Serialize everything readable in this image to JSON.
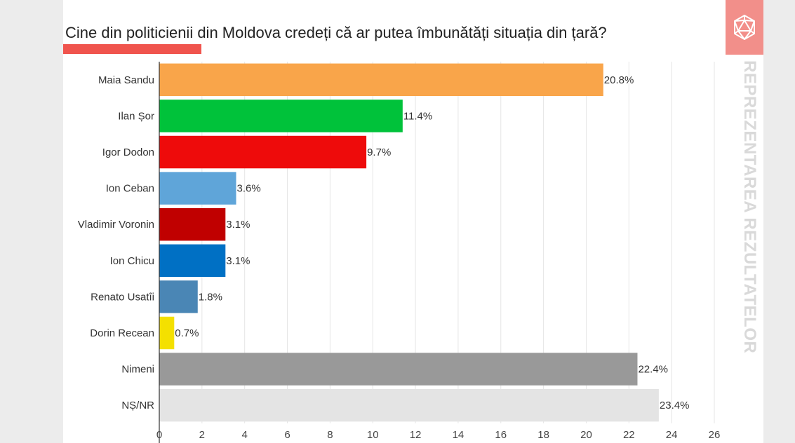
{
  "chart_data": {
    "type": "bar",
    "orientation": "horizontal",
    "title": "Cine din politicienii din Moldova credeți că ar putea îmbunătăți situația din țară?",
    "categories": [
      "Maia Sandu",
      "Ilan Șor",
      "Igor Dodon",
      "Ion Ceban",
      "Vladimir Voronin",
      "Ion Chicu",
      "Renato Usatîi",
      "Dorin Recean",
      "Nimeni",
      "NȘ/NR"
    ],
    "values": [
      20.8,
      11.4,
      9.7,
      3.6,
      3.1,
      3.1,
      1.8,
      0.7,
      22.4,
      23.4
    ],
    "value_labels": [
      "20.8%",
      "11.4%",
      "9.7%",
      "3.6%",
      "3.1%",
      "3.1%",
      "1.8%",
      "0.7%",
      "22.4%",
      "23.4%"
    ],
    "colors": [
      "#f9a54a",
      "#00c23a",
      "#ee0b0b",
      "#5fa5d9",
      "#c00000",
      "#0070c4",
      "#4a86b5",
      "#f4e000",
      "#999999",
      "#e4e4e4"
    ],
    "xlim": [
      0,
      26
    ],
    "xticks": [
      0,
      2,
      4,
      6,
      8,
      10,
      12,
      14,
      16,
      18,
      20,
      22,
      24,
      26
    ],
    "grid": true,
    "xlabel": "",
    "ylabel": ""
  },
  "brand": {
    "side_text": "REPREZENTAREA REZULTATELOR",
    "logo_icon": "icosahedron-logo-icon",
    "box_color": "#f28f8a",
    "accent_color": "#f0544d"
  }
}
